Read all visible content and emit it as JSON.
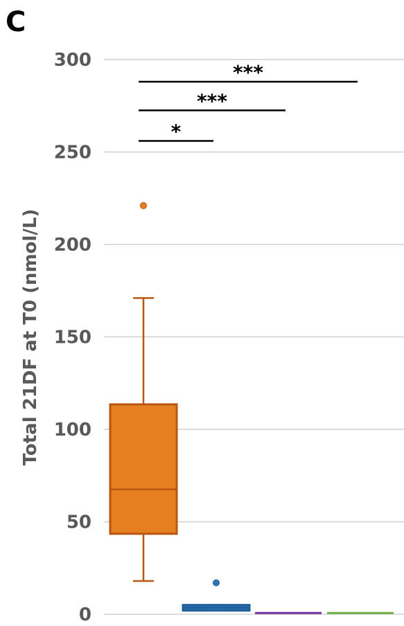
{
  "panel_label": "C",
  "chart_data": {
    "type": "box",
    "title": "",
    "ylabel": "Total 21DF at T0 (nmol/L)",
    "xlabel": "",
    "ylim": [
      0,
      300
    ],
    "yticks": [
      0,
      50,
      100,
      150,
      200,
      250,
      300
    ],
    "grid": true,
    "groups": [
      {
        "color": "#E67E22",
        "stroke": "#B8560F",
        "min": 18,
        "q1": 43.5,
        "median": 67.5,
        "q3": 113.5,
        "max": 171,
        "outliers": [
          221
        ]
      },
      {
        "color": "#2E75B6",
        "stroke": "#1F5F99",
        "min": 2,
        "q1": 2,
        "median": 3.5,
        "q3": 5,
        "max": 5,
        "outliers": [
          17
        ]
      },
      {
        "color": "#7030A0",
        "stroke": "#7030A0",
        "min": 0.3,
        "q1": 0.3,
        "median": 0.3,
        "q3": 0.3,
        "max": 0.3,
        "outliers": []
      },
      {
        "color": "#70AD47",
        "stroke": "#70AD47",
        "min": 0.3,
        "q1": 0.3,
        "median": 0.3,
        "q3": 0.3,
        "max": 0.3,
        "outliers": []
      }
    ],
    "significance": [
      {
        "from": 0,
        "to": 3,
        "label": "***",
        "y": 288
      },
      {
        "from": 0,
        "to": 2,
        "label": "***",
        "y": 272.5
      },
      {
        "from": 0,
        "to": 1,
        "label": "*",
        "y": 256
      }
    ]
  }
}
